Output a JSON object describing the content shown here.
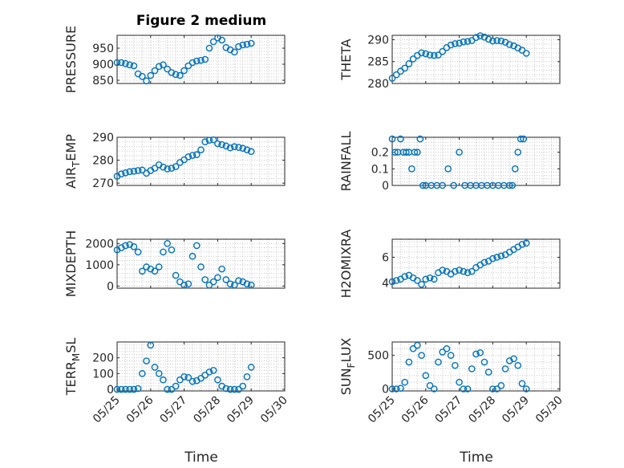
{
  "figure": {
    "title": "Figure 2 medium"
  },
  "chart_data": [
    {
      "type": "scatter",
      "title": "Figure 2 medium",
      "ylabel": "PRESSURE",
      "xlim": [
        "05/25",
        "05/30"
      ],
      "ylim": [
        840,
        990
      ],
      "yticks": [
        850,
        900,
        950
      ],
      "xticks": [
        "05/25",
        "05/26",
        "05/27",
        "05/28",
        "05/29",
        "05/30"
      ],
      "grid": true,
      "x": [
        "05/25 00:00",
        "05/25 03:00",
        "05/25 06:00",
        "05/25 09:00",
        "05/25 12:00",
        "05/25 15:00",
        "05/25 18:00",
        "05/25 21:00",
        "05/26 00:00",
        "05/26 03:00",
        "05/26 06:00",
        "05/26 09:00",
        "05/26 12:00",
        "05/26 15:00",
        "05/26 18:00",
        "05/26 21:00",
        "05/27 00:00",
        "05/27 03:00",
        "05/27 06:00",
        "05/27 09:00",
        "05/27 12:00",
        "05/27 15:00",
        "05/27 18:00",
        "05/27 21:00",
        "05/28 00:00",
        "05/28 03:00",
        "05/28 06:00",
        "05/28 09:00",
        "05/28 12:00",
        "05/28 15:00",
        "05/28 18:00",
        "05/28 21:00",
        "05/29 00:00"
      ],
      "y": [
        905,
        905,
        902,
        898,
        895,
        870,
        862,
        848,
        865,
        880,
        893,
        898,
        885,
        874,
        868,
        865,
        880,
        895,
        905,
        910,
        912,
        915,
        950,
        970,
        982,
        975,
        952,
        945,
        938,
        955,
        960,
        962,
        965
      ]
    },
    {
      "type": "scatter",
      "ylabel": "THETA",
      "xlim": [
        "05/25",
        "05/30"
      ],
      "ylim": [
        280,
        291
      ],
      "yticks": [
        280,
        285,
        290
      ],
      "xticks": [
        "05/25",
        "05/26",
        "05/27",
        "05/28",
        "05/29",
        "05/30"
      ],
      "grid": true,
      "x": [
        "05/25 00:00",
        "05/25 03:00",
        "05/25 06:00",
        "05/25 09:00",
        "05/25 12:00",
        "05/25 15:00",
        "05/25 18:00",
        "05/25 21:00",
        "05/26 00:00",
        "05/26 03:00",
        "05/26 06:00",
        "05/26 09:00",
        "05/26 12:00",
        "05/26 15:00",
        "05/26 18:00",
        "05/26 21:00",
        "05/27 00:00",
        "05/27 03:00",
        "05/27 06:00",
        "05/27 09:00",
        "05/27 12:00",
        "05/27 15:00",
        "05/27 18:00",
        "05/27 21:00",
        "05/28 00:00",
        "05/28 03:00",
        "05/28 06:00",
        "05/28 09:00",
        "05/28 12:00",
        "05/28 15:00",
        "05/28 18:00",
        "05/28 21:00",
        "05/29 00:00"
      ],
      "y": [
        281.2,
        282,
        282.8,
        283.5,
        284.5,
        285.6,
        286.4,
        287,
        286.8,
        286.5,
        286.4,
        286.5,
        287.3,
        288.2,
        288.8,
        289.1,
        289.2,
        289.5,
        289.6,
        289.8,
        290.5,
        290.9,
        290.6,
        290.1,
        289.7,
        289.8,
        289.7,
        289.4,
        288.9,
        288.6,
        288.1,
        287.6,
        286.9
      ]
    },
    {
      "type": "scatter",
      "ylabel": "AIR_TEMP",
      "xlim": [
        "05/25",
        "05/30"
      ],
      "ylim": [
        269,
        290
      ],
      "yticks": [
        270,
        280,
        290
      ],
      "xticks": [
        "05/25",
        "05/26",
        "05/27",
        "05/28",
        "05/29",
        "05/30"
      ],
      "grid": true,
      "x": [
        "05/25 00:00",
        "05/25 03:00",
        "05/25 06:00",
        "05/25 09:00",
        "05/25 12:00",
        "05/25 15:00",
        "05/25 18:00",
        "05/25 21:00",
        "05/26 00:00",
        "05/26 03:00",
        "05/26 06:00",
        "05/26 09:00",
        "05/26 12:00",
        "05/26 15:00",
        "05/26 18:00",
        "05/26 21:00",
        "05/27 00:00",
        "05/27 03:00",
        "05/27 06:00",
        "05/27 09:00",
        "05/27 12:00",
        "05/27 15:00",
        "05/27 18:00",
        "05/27 21:00",
        "05/28 00:00",
        "05/28 03:00",
        "05/28 06:00",
        "05/28 09:00",
        "05/28 12:00",
        "05/28 15:00",
        "05/28 18:00",
        "05/28 21:00",
        "05/29 00:00"
      ],
      "y": [
        273,
        274,
        274.5,
        275,
        275.2,
        275.5,
        275.7,
        274.3,
        275.5,
        276.5,
        278,
        277,
        276.2,
        276.5,
        277.2,
        279,
        280.2,
        281.5,
        282.1,
        282.4,
        284.5,
        288,
        288.7,
        288.9,
        287.2,
        286.8,
        286.2,
        285.4,
        285.9,
        285.6,
        285.2,
        284.5,
        283.8
      ]
    },
    {
      "type": "scatter",
      "ylabel": "RAINFALL",
      "xlim": [
        "05/25",
        "05/30"
      ],
      "ylim": [
        0,
        0.29
      ],
      "yticks": [
        0,
        0.1,
        0.2
      ],
      "xticks": [
        "05/25",
        "05/26",
        "05/27",
        "05/28",
        "05/29",
        "05/30"
      ],
      "grid": true,
      "x": [
        "05/25 00:00",
        "05/25 02:00",
        "05/25 04:00",
        "05/25 06:00",
        "05/25 08:00",
        "05/25 10:00",
        "05/25 12:00",
        "05/25 14:00",
        "05/25 16:00",
        "05/25 18:00",
        "05/25 20:00",
        "05/25 22:00",
        "05/26 00:00",
        "05/26 04:00",
        "05/26 08:00",
        "05/26 12:00",
        "05/26 16:00",
        "05/26 20:00",
        "05/27 00:00",
        "05/27 04:00",
        "05/27 08:00",
        "05/27 12:00",
        "05/27 16:00",
        "05/27 20:00",
        "05/28 00:00",
        "05/28 04:00",
        "05/28 08:00",
        "05/28 12:00",
        "05/28 14:00",
        "05/28 16:00",
        "05/28 18:00",
        "05/28 20:00",
        "05/28 22:00"
      ],
      "y": [
        0.28,
        0.2,
        0.2,
        0.28,
        0.2,
        0.2,
        0.2,
        0.1,
        0.2,
        0.2,
        0.28,
        0,
        0,
        0,
        0,
        0,
        0.1,
        0,
        0.2,
        0,
        0,
        0,
        0,
        0,
        0,
        0,
        0,
        0,
        0,
        0.1,
        0.2,
        0.28,
        0.28
      ]
    },
    {
      "type": "scatter",
      "ylabel": "MIXDEPTH",
      "xlim": [
        "05/25",
        "05/30"
      ],
      "ylim": [
        -100,
        2200
      ],
      "yticks": [
        0,
        1000,
        2000
      ],
      "xticks": [
        "05/25",
        "05/26",
        "05/27",
        "05/28",
        "05/29",
        "05/30"
      ],
      "grid": true,
      "x": [
        "05/25 00:00",
        "05/25 03:00",
        "05/25 06:00",
        "05/25 09:00",
        "05/25 12:00",
        "05/25 15:00",
        "05/25 18:00",
        "05/25 21:00",
        "05/26 00:00",
        "05/26 03:00",
        "05/26 06:00",
        "05/26 09:00",
        "05/26 12:00",
        "05/26 15:00",
        "05/26 18:00",
        "05/26 21:00",
        "05/27 00:00",
        "05/27 03:00",
        "05/27 06:00",
        "05/27 09:00",
        "05/27 12:00",
        "05/27 15:00",
        "05/27 18:00",
        "05/27 21:00",
        "05/28 00:00",
        "05/28 03:00",
        "05/28 06:00",
        "05/28 09:00",
        "05/28 12:00",
        "05/28 15:00",
        "05/28 18:00",
        "05/28 21:00",
        "05/29 00:00"
      ],
      "y": [
        1700,
        1800,
        1900,
        1950,
        1850,
        1600,
        700,
        900,
        800,
        700,
        900,
        1600,
        2000,
        1700,
        500,
        200,
        50,
        100,
        1400,
        1900,
        900,
        300,
        50,
        200,
        400,
        800,
        300,
        100,
        50,
        250,
        200,
        100,
        50
      ]
    },
    {
      "type": "scatter",
      "ylabel": "H2OMIXRA",
      "xlim": [
        "05/25",
        "05/30"
      ],
      "ylim": [
        3.6,
        7.4
      ],
      "yticks": [
        4,
        6
      ],
      "xticks": [
        "05/25",
        "05/26",
        "05/27",
        "05/28",
        "05/29",
        "05/30"
      ],
      "grid": true,
      "x": [
        "05/25 00:00",
        "05/25 03:00",
        "05/25 06:00",
        "05/25 09:00",
        "05/25 12:00",
        "05/25 15:00",
        "05/25 18:00",
        "05/25 21:00",
        "05/26 00:00",
        "05/26 03:00",
        "05/26 06:00",
        "05/26 09:00",
        "05/26 12:00",
        "05/26 15:00",
        "05/26 18:00",
        "05/26 21:00",
        "05/27 00:00",
        "05/27 03:00",
        "05/27 06:00",
        "05/27 09:00",
        "05/27 12:00",
        "05/27 15:00",
        "05/27 18:00",
        "05/27 21:00",
        "05/28 00:00",
        "05/28 03:00",
        "05/28 06:00",
        "05/28 09:00",
        "05/28 12:00",
        "05/28 15:00",
        "05/28 18:00",
        "05/28 21:00",
        "05/29 00:00"
      ],
      "y": [
        4.1,
        4.2,
        4.3,
        4.5,
        4.6,
        4.4,
        4.2,
        3.9,
        4.3,
        4.4,
        4.3,
        4.8,
        5.0,
        4.9,
        4.7,
        4.9,
        5.0,
        4.9,
        4.8,
        4.9,
        5.2,
        5.4,
        5.6,
        5.7,
        5.9,
        6.0,
        6.1,
        6.2,
        6.4,
        6.6,
        6.8,
        7.0,
        7.1
      ]
    },
    {
      "type": "scatter",
      "ylabel": "TERR_MSL",
      "xlim": [
        "05/25",
        "05/30"
      ],
      "ylim": [
        -10,
        300
      ],
      "yticks": [
        0,
        100,
        200
      ],
      "xticks": [
        "05/25",
        "05/26",
        "05/27",
        "05/28",
        "05/29",
        "05/30"
      ],
      "grid": true,
      "x": [
        "05/25 00:00",
        "05/25 03:00",
        "05/25 06:00",
        "05/25 09:00",
        "05/25 12:00",
        "05/25 15:00",
        "05/25 18:00",
        "05/25 21:00",
        "05/26 00:00",
        "05/26 03:00",
        "05/26 06:00",
        "05/26 09:00",
        "05/26 12:00",
        "05/26 15:00",
        "05/26 18:00",
        "05/26 21:00",
        "05/27 00:00",
        "05/27 03:00",
        "05/27 06:00",
        "05/27 09:00",
        "05/27 12:00",
        "05/27 15:00",
        "05/27 18:00",
        "05/27 21:00",
        "05/28 00:00",
        "05/28 03:00",
        "05/28 06:00",
        "05/28 09:00",
        "05/28 12:00",
        "05/28 15:00",
        "05/28 18:00",
        "05/28 21:00",
        "05/29 00:00"
      ],
      "y": [
        0,
        0,
        0,
        0,
        0,
        5,
        100,
        180,
        280,
        140,
        100,
        60,
        0,
        0,
        20,
        60,
        80,
        75,
        50,
        55,
        70,
        90,
        110,
        120,
        60,
        20,
        5,
        0,
        0,
        0,
        20,
        80,
        140
      ]
    },
    {
      "type": "scatter",
      "ylabel": "SUN_FLUX",
      "xlim": [
        "05/25",
        "05/30"
      ],
      "ylim": [
        -30,
        700
      ],
      "yticks": [
        0,
        500
      ],
      "xticks": [
        "05/25",
        "05/26",
        "05/27",
        "05/28",
        "05/29",
        "05/30"
      ],
      "grid": true,
      "x": [
        "05/25 00:00",
        "05/25 03:00",
        "05/25 06:00",
        "05/25 09:00",
        "05/25 12:00",
        "05/25 15:00",
        "05/25 18:00",
        "05/25 21:00",
        "05/26 00:00",
        "05/26 03:00",
        "05/26 06:00",
        "05/26 09:00",
        "05/26 12:00",
        "05/26 15:00",
        "05/26 18:00",
        "05/26 21:00",
        "05/27 00:00",
        "05/27 03:00",
        "05/27 06:00",
        "05/27 09:00",
        "05/27 12:00",
        "05/27 15:00",
        "05/27 18:00",
        "05/27 21:00",
        "05/28 00:00",
        "05/28 03:00",
        "05/28 06:00",
        "05/28 09:00",
        "05/28 12:00",
        "05/28 15:00",
        "05/28 18:00",
        "05/28 21:00",
        "05/29 00:00"
      ],
      "y": [
        0,
        0,
        10,
        100,
        400,
        600,
        650,
        500,
        200,
        50,
        0,
        400,
        550,
        600,
        500,
        350,
        100,
        0,
        0,
        300,
        520,
        540,
        400,
        250,
        0,
        0,
        50,
        300,
        420,
        450,
        350,
        80,
        0
      ]
    }
  ],
  "xlabels": {
    "left": "Time",
    "right": "Time"
  }
}
